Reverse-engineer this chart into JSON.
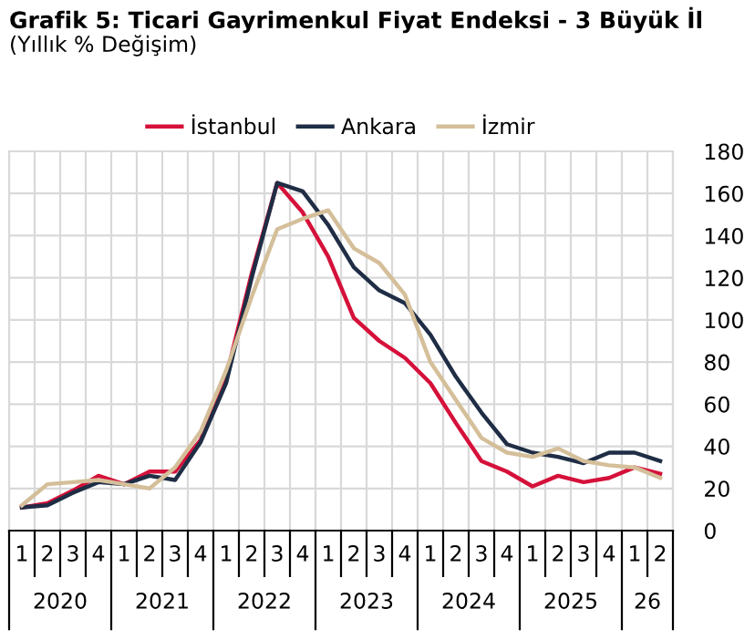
{
  "chart_data": {
    "type": "line",
    "title": "Grafik 5: Ticari Gayrimenkul Fiyat Endeksi - 3 Büyük İl",
    "subtitle": "(Yıllık % Değişim)",
    "categories": [
      "1",
      "2",
      "3",
      "4",
      "1",
      "2",
      "3",
      "4",
      "1",
      "2",
      "3",
      "4",
      "1",
      "2",
      "3",
      "4",
      "1",
      "2",
      "3",
      "4",
      "1",
      "2",
      "3",
      "4",
      "1",
      "2"
    ],
    "annotations": [
      "2020",
      "2021",
      "2022",
      "2023",
      "2024",
      "2025",
      "26"
    ],
    "series": [
      {
        "name": "İstanbul",
        "color": "#d5113a",
        "values": [
          11,
          13,
          19,
          26,
          22,
          28,
          28,
          43,
          73,
          122,
          165,
          151,
          130,
          101,
          90,
          82,
          70,
          51,
          33,
          28,
          21,
          26,
          23,
          25,
          30,
          27
        ]
      },
      {
        "name": "Ankara",
        "color": "#1f2d45",
        "values": [
          11,
          12,
          18,
          23,
          22,
          26,
          24,
          42,
          70,
          120,
          165,
          161,
          145,
          125,
          114,
          108,
          93,
          73,
          56,
          41,
          37,
          35,
          32,
          37,
          37,
          33
        ]
      },
      {
        "name": "İzmir",
        "color": "#d4bf9a",
        "values": [
          12,
          22,
          23,
          24,
          22,
          20,
          30,
          47,
          76,
          111,
          143,
          148,
          152,
          134,
          127,
          112,
          80,
          62,
          44,
          37,
          35,
          39,
          33,
          31,
          30,
          25
        ]
      }
    ],
    "ylim": [
      0,
      180
    ],
    "yticks": [
      0,
      20,
      40,
      60,
      80,
      100,
      120,
      140,
      160,
      180
    ],
    "grid": true,
    "legend": "top",
    "marker": "none",
    "line_style": "solid"
  }
}
